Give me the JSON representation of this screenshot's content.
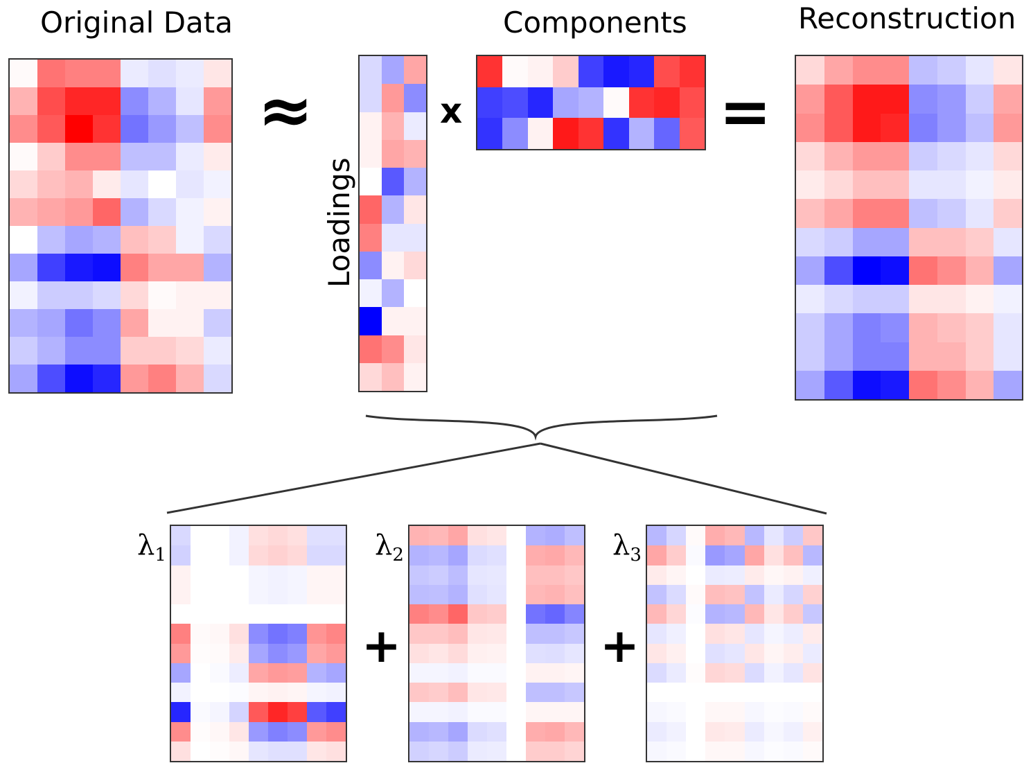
{
  "titles": {
    "original": "Original Data",
    "components": "Components",
    "reconstruction": "Reconstruction",
    "loadings": "Loadings"
  },
  "operators": {
    "approx": "≈",
    "times": "x",
    "equals": "=",
    "plus": "+"
  },
  "lambdas": [
    {
      "symbol": "λ",
      "sub": "1"
    },
    {
      "symbol": "λ",
      "sub": "2"
    },
    {
      "symbol": "λ",
      "sub": "3"
    }
  ],
  "colors": {
    "positive": "#ff0000",
    "negative": "#0000ff",
    "neutral": "#ffffff",
    "border": "#333333"
  },
  "matrices": {
    "original": [
      [
        0.02,
        0.55,
        0.5,
        0.5,
        -0.08,
        -0.12,
        -0.08,
        0.1
      ],
      [
        0.3,
        0.7,
        0.85,
        0.85,
        -0.45,
        -0.3,
        -0.1,
        0.4
      ],
      [
        0.45,
        0.65,
        1.0,
        0.8,
        -0.55,
        -0.4,
        -0.25,
        0.45
      ],
      [
        0.02,
        0.2,
        0.45,
        0.45,
        -0.25,
        -0.25,
        -0.08,
        0.08
      ],
      [
        0.15,
        0.25,
        0.3,
        0.08,
        -0.1,
        0.0,
        -0.1,
        -0.05
      ],
      [
        0.3,
        0.35,
        0.4,
        0.6,
        -0.3,
        -0.15,
        -0.05,
        0.05
      ],
      [
        0.0,
        -0.25,
        -0.35,
        -0.3,
        0.25,
        0.2,
        -0.05,
        -0.15
      ],
      [
        -0.35,
        -0.75,
        -0.9,
        -0.95,
        0.5,
        0.35,
        0.35,
        -0.3
      ],
      [
        -0.05,
        -0.2,
        -0.2,
        -0.15,
        0.15,
        0.02,
        0.05,
        0.05
      ],
      [
        -0.3,
        -0.35,
        -0.55,
        -0.45,
        0.35,
        0.05,
        0.05,
        -0.2
      ],
      [
        -0.2,
        -0.3,
        -0.45,
        -0.45,
        0.2,
        0.2,
        0.15,
        -0.08
      ],
      [
        -0.35,
        -0.7,
        -0.95,
        -0.85,
        0.4,
        0.5,
        0.3,
        -0.15
      ]
    ],
    "loadings": [
      [
        -0.15,
        -0.35,
        0.35
      ],
      [
        -0.15,
        0.4,
        -0.45
      ],
      [
        0.05,
        0.3,
        -0.08
      ],
      [
        0.05,
        0.35,
        0.3
      ],
      [
        0.0,
        -0.65,
        -0.3
      ],
      [
        0.6,
        -0.3,
        0.1
      ],
      [
        0.5,
        -0.1,
        -0.1
      ],
      [
        -0.45,
        0.05,
        0.15
      ],
      [
        -0.05,
        -0.3,
        0.0
      ],
      [
        -1.0,
        0.05,
        0.05
      ],
      [
        0.55,
        0.45,
        0.1
      ],
      [
        0.15,
        0.25,
        0.05
      ]
    ],
    "components": [
      [
        0.8,
        0.02,
        0.05,
        0.2,
        -0.75,
        -0.9,
        -0.85,
        0.7,
        0.8
      ],
      [
        -0.75,
        -0.7,
        -0.85,
        -0.35,
        -0.3,
        0.02,
        0.8,
        0.85,
        0.7
      ],
      [
        -0.8,
        -0.45,
        0.05,
        0.9,
        0.8,
        -0.8,
        -0.3,
        -0.6,
        0.65
      ]
    ],
    "reconstruction": [
      [
        0.15,
        0.35,
        0.45,
        0.45,
        -0.25,
        -0.2,
        -0.1,
        0.1
      ],
      [
        0.4,
        0.65,
        0.9,
        0.9,
        -0.45,
        -0.4,
        -0.2,
        0.35
      ],
      [
        0.45,
        0.65,
        0.9,
        0.85,
        -0.5,
        -0.4,
        -0.25,
        0.4
      ],
      [
        0.15,
        0.3,
        0.4,
        0.4,
        -0.2,
        -0.15,
        -0.1,
        0.15
      ],
      [
        0.08,
        0.15,
        0.25,
        0.25,
        -0.1,
        -0.1,
        -0.05,
        0.08
      ],
      [
        0.25,
        0.35,
        0.5,
        0.5,
        -0.25,
        -0.2,
        -0.1,
        0.2
      ],
      [
        -0.15,
        -0.2,
        -0.35,
        -0.35,
        0.25,
        0.25,
        0.2,
        -0.1
      ],
      [
        -0.35,
        -0.7,
        -1.0,
        -0.95,
        0.55,
        0.45,
        0.3,
        -0.35
      ],
      [
        -0.08,
        -0.15,
        -0.2,
        -0.2,
        0.1,
        0.1,
        0.05,
        -0.05
      ],
      [
        -0.2,
        -0.35,
        -0.5,
        -0.45,
        0.3,
        0.25,
        0.2,
        -0.1
      ],
      [
        -0.2,
        -0.35,
        -0.5,
        -0.5,
        0.3,
        0.3,
        0.2,
        -0.1
      ],
      [
        -0.35,
        -0.65,
        -0.95,
        -0.9,
        0.55,
        0.45,
        0.3,
        -0.35
      ]
    ],
    "lambda1": [
      [
        -0.15,
        0.0,
        0.0,
        -0.05,
        0.12,
        0.15,
        0.12,
        -0.12,
        -0.12
      ],
      [
        -0.18,
        0.0,
        0.0,
        -0.05,
        0.15,
        0.18,
        0.15,
        -0.15,
        -0.15
      ],
      [
        0.05,
        0.0,
        0.0,
        0.0,
        -0.04,
        -0.05,
        -0.04,
        0.04,
        0.04
      ],
      [
        0.05,
        0.0,
        0.0,
        0.0,
        -0.04,
        -0.05,
        -0.04,
        0.04,
        0.04
      ],
      [
        0.0,
        0.0,
        0.0,
        0.0,
        0.0,
        0.0,
        0.0,
        0.0,
        0.0
      ],
      [
        0.5,
        0.02,
        0.03,
        0.12,
        -0.45,
        -0.55,
        -0.5,
        0.42,
        0.48
      ],
      [
        0.4,
        0.01,
        0.02,
        0.08,
        -0.35,
        -0.45,
        -0.4,
        0.35,
        0.4
      ],
      [
        -0.35,
        0.0,
        -0.02,
        -0.07,
        0.35,
        0.4,
        0.38,
        -0.3,
        -0.35
      ],
      [
        -0.05,
        0.0,
        0.0,
        -0.01,
        0.04,
        0.05,
        0.04,
        -0.04,
        -0.05
      ],
      [
        -0.85,
        -0.02,
        -0.04,
        -0.17,
        0.65,
        0.85,
        0.75,
        -0.65,
        -0.75
      ],
      [
        0.45,
        0.01,
        0.03,
        0.1,
        -0.4,
        -0.5,
        -0.45,
        0.4,
        0.45
      ],
      [
        0.12,
        0.0,
        0.01,
        0.03,
        -0.1,
        -0.12,
        -0.12,
        0.1,
        0.12
      ]
    ],
    "lambda2": [
      [
        0.3,
        0.28,
        0.35,
        0.12,
        0.1,
        0.0,
        -0.3,
        -0.32,
        -0.25
      ],
      [
        -0.3,
        -0.28,
        -0.35,
        -0.14,
        -0.12,
        0.0,
        0.32,
        0.34,
        0.28
      ],
      [
        -0.22,
        -0.2,
        -0.26,
        -0.1,
        -0.09,
        0.0,
        0.25,
        0.25,
        0.22
      ],
      [
        -0.26,
        -0.25,
        -0.3,
        -0.12,
        -0.1,
        0.0,
        0.28,
        0.3,
        0.25
      ],
      [
        0.5,
        0.45,
        0.6,
        0.22,
        0.2,
        0.0,
        -0.55,
        -0.6,
        -0.48
      ],
      [
        0.22,
        0.22,
        0.26,
        0.1,
        0.09,
        0.0,
        -0.25,
        -0.25,
        -0.22
      ],
      [
        0.12,
        0.1,
        0.14,
        0.06,
        0.05,
        0.0,
        -0.12,
        -0.13,
        -0.1
      ],
      [
        -0.04,
        -0.04,
        -0.05,
        -0.02,
        -0.02,
        0.0,
        0.05,
        0.05,
        0.04
      ],
      [
        0.22,
        0.2,
        0.26,
        0.1,
        0.09,
        0.0,
        -0.25,
        -0.25,
        -0.22
      ],
      [
        -0.04,
        -0.04,
        -0.05,
        -0.02,
        -0.02,
        0.0,
        0.04,
        0.04,
        0.04
      ],
      [
        -0.3,
        -0.28,
        -0.35,
        -0.14,
        -0.12,
        0.0,
        0.32,
        0.34,
        0.28
      ],
      [
        -0.18,
        -0.16,
        -0.2,
        -0.08,
        -0.07,
        0.0,
        0.2,
        0.2,
        0.17
      ]
    ],
    "lambda3": [
      [
        -0.28,
        -0.16,
        0.02,
        0.32,
        0.28,
        -0.28,
        -0.1,
        -0.2,
        0.22
      ],
      [
        0.35,
        0.2,
        -0.02,
        -0.4,
        -0.35,
        0.35,
        0.12,
        0.25,
        -0.28
      ],
      [
        0.08,
        0.04,
        0.0,
        -0.08,
        -0.07,
        0.08,
        0.03,
        0.05,
        -0.06
      ],
      [
        -0.24,
        -0.14,
        0.02,
        0.26,
        0.24,
        -0.24,
        -0.08,
        -0.16,
        0.18
      ],
      [
        0.28,
        0.16,
        -0.01,
        -0.3,
        -0.28,
        0.28,
        0.1,
        0.2,
        -0.22
      ],
      [
        -0.1,
        -0.06,
        0.0,
        0.12,
        0.1,
        -0.1,
        -0.04,
        -0.07,
        0.08
      ],
      [
        0.1,
        0.06,
        0.0,
        -0.12,
        -0.1,
        0.1,
        0.04,
        0.07,
        -0.08
      ],
      [
        -0.14,
        -0.08,
        0.01,
        0.16,
        0.14,
        -0.14,
        -0.05,
        -0.1,
        0.11
      ],
      [
        0.0,
        0.0,
        0.0,
        0.0,
        0.0,
        0.0,
        0.0,
        0.0,
        0.0
      ],
      [
        -0.03,
        -0.02,
        0.0,
        0.03,
        0.03,
        -0.03,
        -0.01,
        -0.02,
        0.02
      ],
      [
        -0.08,
        -0.05,
        0.0,
        0.09,
        0.08,
        -0.08,
        -0.03,
        -0.06,
        0.06
      ],
      [
        -0.03,
        -0.02,
        0.0,
        0.03,
        0.03,
        -0.03,
        -0.01,
        -0.02,
        0.02
      ]
    ]
  }
}
